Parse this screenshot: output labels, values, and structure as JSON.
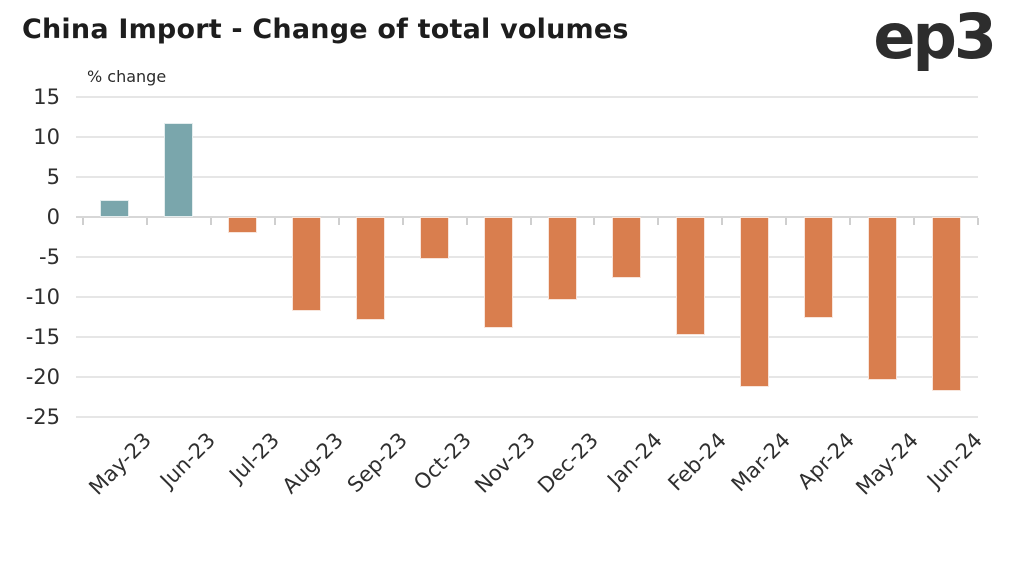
{
  "header": {
    "title": "China Import - Change of total volumes",
    "logo": "ep3"
  },
  "chart_data": {
    "type": "bar",
    "title": "China Import - Change of total volumes",
    "ylabel": "% change",
    "xlabel": "",
    "categories": [
      "May-23",
      "Jun-23",
      "Jul-23",
      "Aug-23",
      "Sep-23",
      "Oct-23",
      "Nov-23",
      "Dec-23",
      "Jan-24",
      "Feb-24",
      "Mar-24",
      "Apr-24",
      "May-24",
      "Jun-24"
    ],
    "values": [
      2.1,
      11.8,
      -2.0,
      -11.7,
      -12.9,
      -5.3,
      -13.9,
      -10.4,
      -7.6,
      -14.7,
      -21.2,
      -12.6,
      -20.4,
      -21.7
    ],
    "yticks": [
      15,
      10,
      5,
      0,
      -5,
      -10,
      -15,
      -20,
      -25
    ],
    "ylim": [
      -25,
      15
    ],
    "grid": true,
    "legend": false,
    "colors": {
      "positive": "#7AA6AC",
      "negative": "#D97E4E"
    }
  }
}
